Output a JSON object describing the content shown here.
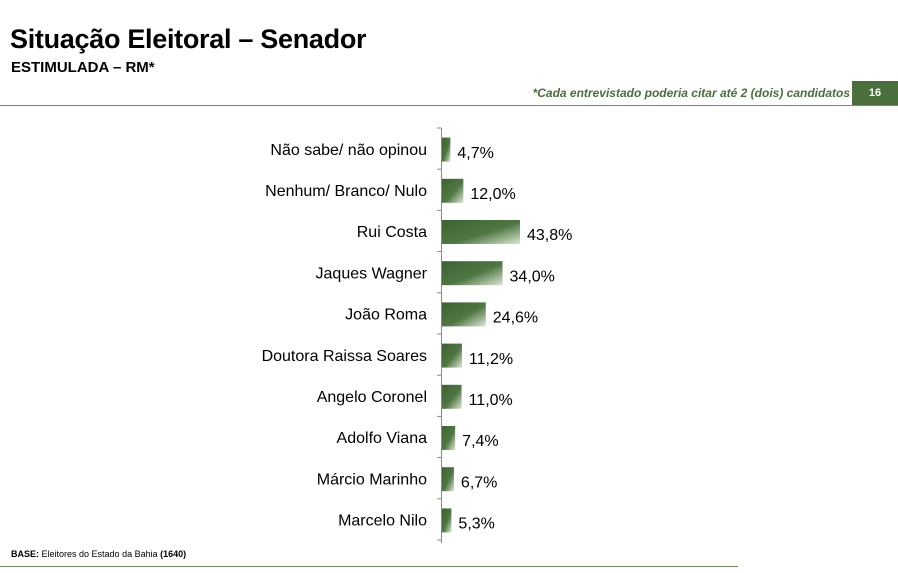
{
  "header": {
    "title": "Situação Eleitoral – Senador",
    "subtitle": "ESTIMULADA – RM*",
    "note": "*Cada entrevistado poderia citar até 2 (dois) candidatos",
    "page_number": "16"
  },
  "footer": {
    "base_label": "BASE:",
    "base_text": " Eleitores do Estado da Bahia ",
    "base_count": "(1640)"
  },
  "colors": {
    "accent": "#4a6e3c",
    "bar_dark": "#3e6233",
    "bar_light": "#dde6d6"
  },
  "chart_data": {
    "type": "bar",
    "orientation": "horizontal",
    "categories": [
      "Não sabe/ não opinou",
      "Nenhum/ Branco/ Nulo",
      "Rui Costa",
      "Jaques Wagner",
      "João Roma",
      "Doutora Raissa Soares",
      "Angelo Coronel",
      "Adolfo Viana",
      "Márcio Marinho",
      "Marcelo Nilo"
    ],
    "values": [
      4.7,
      12.0,
      43.8,
      34.0,
      24.6,
      11.2,
      11.0,
      7.4,
      6.7,
      5.3
    ],
    "value_labels": [
      "4,7%",
      "12,0%",
      "43,8%",
      "34,0%",
      "24,6%",
      "11,2%",
      "11,0%",
      "7,4%",
      "6,7%",
      "5,3%"
    ],
    "xlim": [
      0,
      100
    ],
    "grid": false,
    "legend": "none"
  }
}
